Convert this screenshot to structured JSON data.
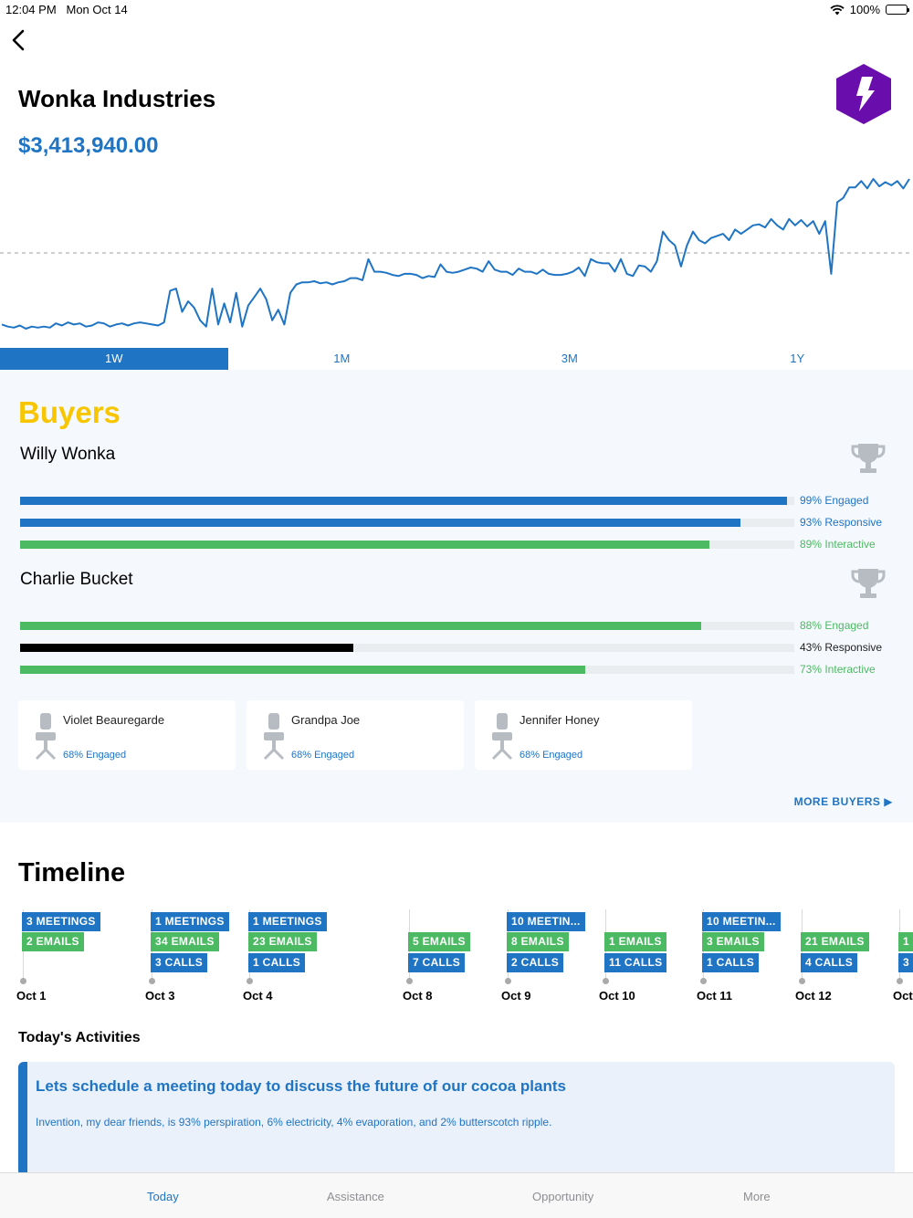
{
  "status_bar": {
    "time": "12:04 PM",
    "date": "Mon Oct 14",
    "battery": "100%",
    "wifi_icon": "wifi-icon"
  },
  "header": {
    "back_icon": "chevron-left-icon",
    "title": "Wonka Industries",
    "amount": "$3,413,940.00",
    "logo_icon": "lightning-hexagon-icon"
  },
  "colors": {
    "accent": "#1f74c4",
    "green": "#4cb963",
    "gold": "#f7c600",
    "logo": "#6a0dad"
  },
  "chart_data": {
    "type": "line",
    "series": [
      {
        "values": [
          10,
          8,
          7,
          9,
          6,
          8,
          7,
          8,
          7,
          11,
          9,
          12,
          10,
          11,
          8,
          9,
          12,
          11,
          8,
          10,
          11,
          9,
          11,
          12,
          11,
          10,
          9,
          12,
          42,
          44,
          22,
          32,
          26,
          14,
          8,
          44,
          10,
          30,
          12,
          40,
          8,
          28,
          36,
          44,
          34,
          14,
          24,
          10,
          40,
          48,
          50,
          50,
          51,
          49,
          50,
          48,
          50,
          51,
          54,
          54,
          52,
          72,
          60,
          60,
          59,
          57,
          56,
          58,
          58,
          57,
          54,
          56,
          55,
          67,
          60,
          59,
          60,
          62,
          64,
          63,
          60,
          70,
          62,
          60,
          60,
          57,
          63,
          60,
          60,
          58,
          62,
          58,
          57,
          57,
          58,
          60,
          64,
          56,
          72,
          69,
          68,
          68,
          60,
          72,
          58,
          56,
          66,
          65,
          60,
          70,
          98,
          90,
          85,
          65,
          85,
          98,
          90,
          87,
          92,
          94,
          96,
          90,
          100,
          96,
          100,
          104,
          105,
          102,
          110,
          104,
          100,
          110,
          104,
          109,
          103,
          108,
          96,
          108,
          58,
          126,
          130,
          140,
          140,
          146,
          139,
          148,
          141,
          145,
          142,
          146,
          139,
          148
        ]
      }
    ],
    "reference_line": "dashed",
    "grid": false
  },
  "range_tabs": [
    "1W",
    "1M",
    "3M",
    "1Y"
  ],
  "range_selected": "1W",
  "buyers": {
    "title": "Buyers",
    "primary": [
      {
        "name": "Willy Wonka",
        "icon": "trophy-icon",
        "metrics": [
          {
            "value": 99,
            "label": "99% Engaged",
            "color": "blue"
          },
          {
            "value": 93,
            "label": "93% Responsive",
            "color": "blue"
          },
          {
            "value": 89,
            "label": "89% Interactive",
            "color": "green"
          }
        ]
      },
      {
        "name": "Charlie Bucket",
        "icon": "trophy-icon",
        "metrics": [
          {
            "value": 88,
            "label": "88% Engaged",
            "color": "green"
          },
          {
            "value": 43,
            "label": "43% Responsive",
            "color": "black"
          },
          {
            "value": 73,
            "label": "73% Interactive",
            "color": "green"
          }
        ]
      }
    ],
    "others": [
      {
        "name": "Violet Beauregarde",
        "engaged": "68% Engaged",
        "icon": "chair-icon"
      },
      {
        "name": "Grandpa Joe",
        "engaged": "68% Engaged",
        "icon": "chair-icon"
      },
      {
        "name": "Jennifer Honey",
        "engaged": "68% Engaged",
        "icon": "chair-icon"
      }
    ],
    "more_label": "MORE BUYERS ▶"
  },
  "timeline": {
    "title": "Timeline",
    "items": [
      {
        "date": "Oct 1",
        "meetings": "3 MEETINGS",
        "emails": "2 EMAILS",
        "calls": ""
      },
      {
        "date": "Oct 3",
        "meetings": "1 MEETINGS",
        "emails": "34 EMAILS",
        "calls": "3 CALLS"
      },
      {
        "date": "Oct 4",
        "meetings": "1 MEETINGS",
        "emails": "23 EMAILS",
        "calls": "1 CALLS"
      },
      {
        "date": "Oct 8",
        "meetings": "",
        "emails": "5 EMAILS",
        "calls": "7 CALLS"
      },
      {
        "date": "Oct 9",
        "meetings": "10 MEETIN...",
        "emails": "8 EMAILS",
        "calls": "2 CALLS"
      },
      {
        "date": "Oct 10",
        "meetings": "",
        "emails": "1 EMAILS",
        "calls": "11 CALLS"
      },
      {
        "date": "Oct 11",
        "meetings": "10 MEETIN...",
        "emails": "3 EMAILS",
        "calls": "1 CALLS"
      },
      {
        "date": "Oct 12",
        "meetings": "",
        "emails": "21 EMAILS",
        "calls": "4 CALLS"
      },
      {
        "date": "Oct",
        "meetings": "",
        "emails": "1",
        "calls": "3"
      }
    ]
  },
  "activities": {
    "title": "Today's Activities",
    "card": {
      "title": "Lets schedule a meeting today to discuss the future of our cocoa plants",
      "body": "Invention, my dear friends, is 93% perspiration, 6% electricity, 4% evaporation, and 2% butterscotch ripple."
    }
  },
  "tab_bar": {
    "items": [
      "Today",
      "Assistance",
      "Opportunity",
      "More"
    ],
    "selected": "Today"
  }
}
